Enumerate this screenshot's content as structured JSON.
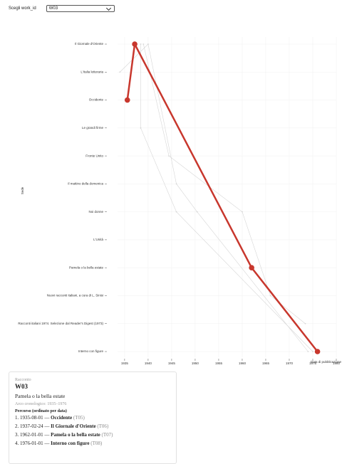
{
  "control": {
    "label": "Scegli work_id",
    "selected": "W03"
  },
  "chart_data": {
    "type": "line",
    "x_label": "Data di pubblicazione",
    "y_label": "Sede",
    "categories": [
      "Il Giornale d'Oriente",
      "L'Italia letteraria",
      "Occidente",
      "Le grandi firme",
      "Fronte Unito",
      "Il mattino della domenica",
      "Noi donne",
      "L'Unità",
      "Pamela o la bella estate",
      "Nuovi racconti italiani, a cura di L. Sinisi",
      "Racconti italiani 1974. Selezione dal Reader's Digest (1973)",
      "Interno con figure"
    ],
    "xlim": [
      1933.5,
      1980
    ],
    "xticks": [
      1935,
      1940,
      1945,
      1950,
      1955,
      1960,
      1965,
      1970,
      1975,
      1980
    ],
    "grid": true,
    "series": [
      {
        "color": "#d6d6d6",
        "x": [
          "1938-06-01",
          "1938-06-01",
          "1946-01-01",
          "1975-01-01"
        ],
        "values": [
          "Il Giornale d'Oriente",
          "Le grandi firme",
          "Noi donne",
          "Interno con figure"
        ]
      },
      {
        "color": "#d6d6d6",
        "x": [
          "1939-01-01",
          "1944-06-01",
          "1960-01-01",
          "1966-01-01",
          "1973-06-01"
        ],
        "values": [
          "Il Giornale d'Oriente",
          "Fronte Unito",
          "Noi donne",
          "Nuovi racconti italiani, a cura di L. Sinisi",
          "Racconti italiani 1974. Selezione dal Reader's Digest (1973)"
        ]
      },
      {
        "color": "#d6d6d6",
        "x": [
          "1934-01-01",
          "1940-01-01",
          "1946-01-01",
          "1950-06-01",
          "1974-01-01"
        ],
        "values": [
          "L'Italia letteraria",
          "Il Giornale d'Oriente",
          "Il mattino della domenica",
          "Noi donne",
          "Interno con figure"
        ]
      },
      {
        "color": "#c8372d",
        "x": [
          "1935-08-01",
          "1937-02-24",
          "1962-01-01",
          "1976-01-01"
        ],
        "values": [
          "Occidente",
          "Il Giornale d'Oriente",
          "Pamela o la bella estate",
          "Interno con figure"
        ]
      }
    ]
  },
  "card": {
    "kind": "Racconto",
    "id": "W03",
    "title": "Pamela o la bella estate",
    "arc": "Arco cronologico: 1935–1976",
    "route_title": "Percorso (ordinato per data)",
    "route": [
      {
        "date": "1935-08-01",
        "name": "Occidente",
        "code": "T05"
      },
      {
        "date": "1937-02-24",
        "name": "Il Giornale d'Oriente",
        "code": "T06"
      },
      {
        "date": "1962-01-01",
        "name": "Pamela o la bella estate",
        "code": "T07"
      },
      {
        "date": "1976-01-01",
        "name": "Interno con figure",
        "code": "T08"
      }
    ]
  }
}
